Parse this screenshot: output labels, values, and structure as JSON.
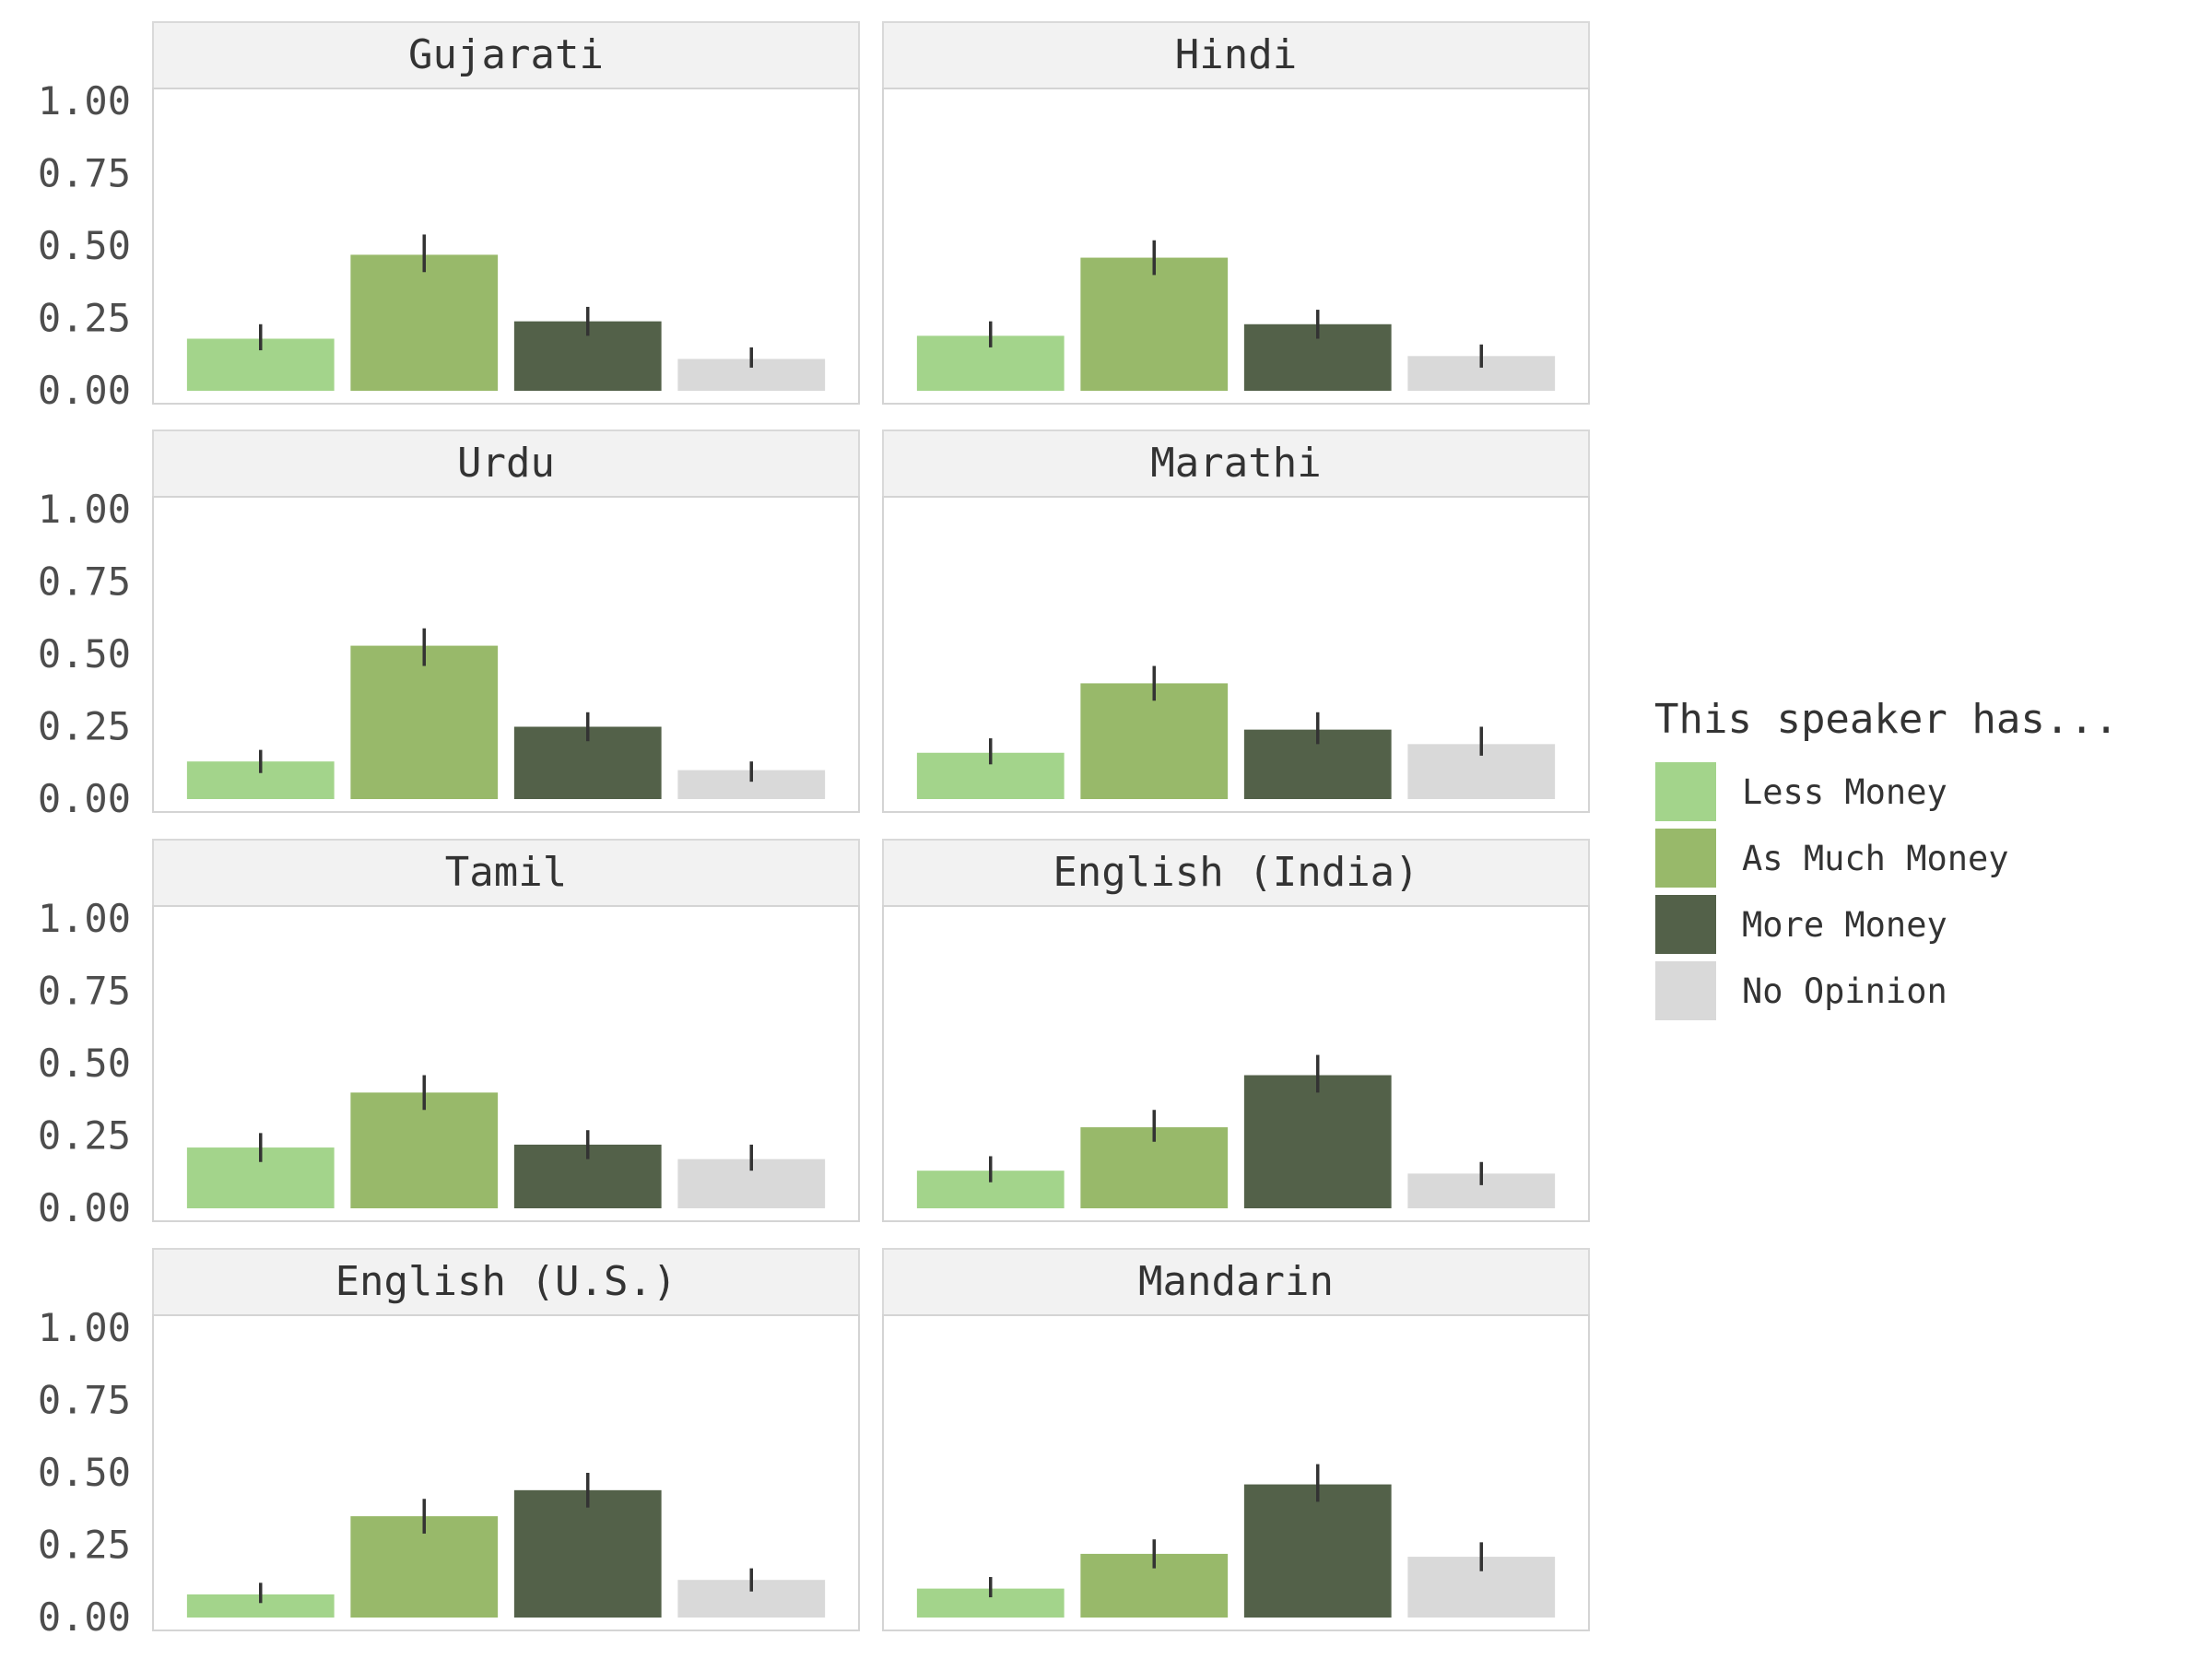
{
  "chart_data": {
    "type": "bar",
    "facet_by": "language",
    "categories": [
      "Less Money",
      "As Much Money",
      "More Money",
      "No Opinion"
    ],
    "colors": {
      "Less Money": "#a3d48b",
      "As Much Money": "#98b96a",
      "More Money": "#536149",
      "No Opinion": "#d9d9d9"
    },
    "ylim": [
      0,
      1
    ],
    "yticks": [
      "0.00",
      "0.25",
      "0.50",
      "0.75",
      "1.00"
    ],
    "legend": {
      "title": "This speaker has...",
      "position": "right",
      "entries": [
        "Less Money",
        "As Much Money",
        "More Money",
        "No Opinion"
      ]
    },
    "panels": [
      {
        "label": "Gujarati",
        "values": [
          0.18,
          0.47,
          0.24,
          0.11
        ],
        "err": [
          [
            0.14,
            0.23
          ],
          [
            0.41,
            0.54
          ],
          [
            0.19,
            0.29
          ],
          [
            0.08,
            0.15
          ]
        ]
      },
      {
        "label": "Hindi",
        "values": [
          0.19,
          0.46,
          0.23,
          0.12
        ],
        "err": [
          [
            0.15,
            0.24
          ],
          [
            0.4,
            0.52
          ],
          [
            0.18,
            0.28
          ],
          [
            0.08,
            0.16
          ]
        ]
      },
      {
        "label": "Urdu",
        "values": [
          0.13,
          0.53,
          0.25,
          0.1
        ],
        "err": [
          [
            0.09,
            0.17
          ],
          [
            0.46,
            0.59
          ],
          [
            0.2,
            0.3
          ],
          [
            0.06,
            0.13
          ]
        ]
      },
      {
        "label": "Marathi",
        "values": [
          0.16,
          0.4,
          0.24,
          0.19
        ],
        "err": [
          [
            0.12,
            0.21
          ],
          [
            0.34,
            0.46
          ],
          [
            0.19,
            0.3
          ],
          [
            0.15,
            0.25
          ]
        ]
      },
      {
        "label": "Tamil",
        "values": [
          0.21,
          0.4,
          0.22,
          0.17
        ],
        "err": [
          [
            0.16,
            0.26
          ],
          [
            0.34,
            0.46
          ],
          [
            0.17,
            0.27
          ],
          [
            0.13,
            0.22
          ]
        ]
      },
      {
        "label": "English (India)",
        "values": [
          0.13,
          0.28,
          0.46,
          0.12
        ],
        "err": [
          [
            0.09,
            0.18
          ],
          [
            0.23,
            0.34
          ],
          [
            0.4,
            0.53
          ],
          [
            0.08,
            0.16
          ]
        ]
      },
      {
        "label": "English (U.S.)",
        "values": [
          0.08,
          0.35,
          0.44,
          0.13
        ],
        "err": [
          [
            0.05,
            0.12
          ],
          [
            0.29,
            0.41
          ],
          [
            0.38,
            0.5
          ],
          [
            0.09,
            0.17
          ]
        ]
      },
      {
        "label": "Mandarin",
        "values": [
          0.1,
          0.22,
          0.46,
          0.21
        ],
        "err": [
          [
            0.07,
            0.14
          ],
          [
            0.17,
            0.27
          ],
          [
            0.4,
            0.53
          ],
          [
            0.16,
            0.26
          ]
        ]
      }
    ]
  }
}
